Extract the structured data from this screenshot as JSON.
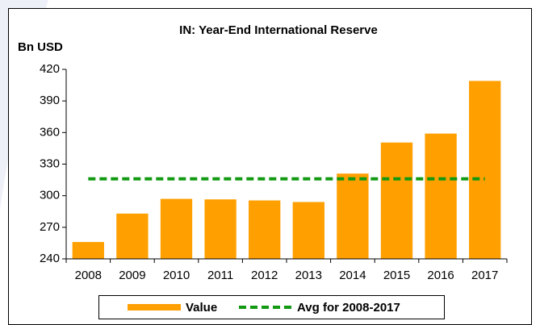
{
  "chart_data": {
    "type": "bar",
    "title": "IN: Year-End International Reserve",
    "y_label": "Bn USD",
    "categories": [
      "2008",
      "2009",
      "2010",
      "2011",
      "2012",
      "2013",
      "2014",
      "2015",
      "2016",
      "2017"
    ],
    "series": [
      {
        "name": "Value",
        "type": "bar",
        "color": "#ff9f00",
        "values": [
          256,
          283,
          297,
          296.5,
          295.5,
          294,
          321,
          350.5,
          359,
          409
        ]
      },
      {
        "name": "Avg for 2008-2017",
        "type": "line",
        "color": "#119911",
        "dashed": true,
        "values": [
          316,
          316,
          316,
          316,
          316,
          316,
          316,
          316,
          316,
          316
        ]
      }
    ],
    "ylim": [
      240,
      420
    ],
    "yticks": [
      240,
      270,
      300,
      330,
      360,
      390,
      420
    ],
    "grid": false,
    "legend": "bottom"
  }
}
